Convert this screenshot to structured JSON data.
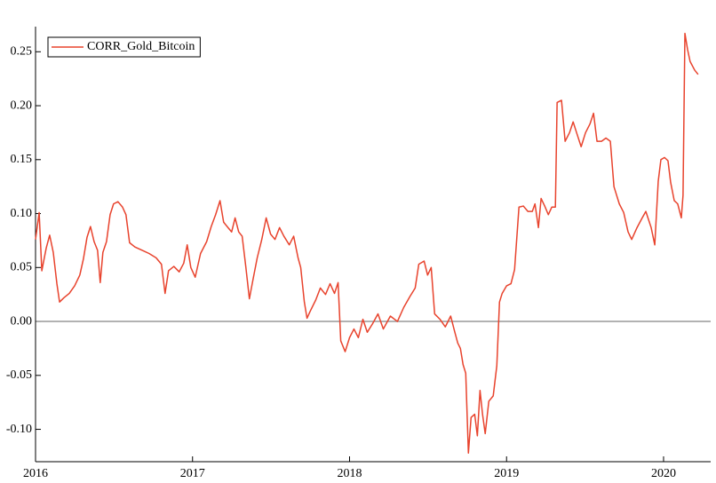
{
  "chart_data": {
    "type": "line",
    "x": [
      2016.0,
      2016.023,
      2016.04,
      2016.068,
      2016.09,
      2016.113,
      2016.136,
      2016.153,
      2016.181,
      2016.215,
      2016.249,
      2016.282,
      2016.305,
      2016.328,
      2016.35,
      2016.373,
      2016.395,
      2016.412,
      2016.429,
      2016.452,
      2016.475,
      2016.497,
      2016.525,
      2016.554,
      2016.576,
      2016.599,
      2016.633,
      2016.678,
      2016.723,
      2016.768,
      2016.802,
      2016.825,
      2016.847,
      2016.881,
      2016.915,
      2016.944,
      2016.966,
      2016.989,
      2017.017,
      2017.051,
      2017.09,
      2017.119,
      2017.147,
      2017.175,
      2017.198,
      2017.226,
      2017.249,
      2017.271,
      2017.294,
      2017.316,
      2017.339,
      2017.362,
      2017.384,
      2017.412,
      2017.441,
      2017.469,
      2017.497,
      2017.525,
      2017.554,
      2017.582,
      2017.616,
      2017.644,
      2017.672,
      2017.689,
      2017.712,
      2017.729,
      2017.751,
      2017.785,
      2017.814,
      2017.847,
      2017.876,
      2017.904,
      2017.927,
      2017.944,
      2017.972,
      2018.0,
      2018.028,
      2018.056,
      2018.085,
      2018.113,
      2018.147,
      2018.181,
      2018.215,
      2018.26,
      2018.305,
      2018.345,
      2018.384,
      2018.418,
      2018.441,
      2018.475,
      2018.497,
      2018.52,
      2018.542,
      2018.576,
      2018.61,
      2018.644,
      2018.667,
      2018.689,
      2018.706,
      2018.723,
      2018.74,
      2018.757,
      2018.774,
      2018.797,
      2018.814,
      2018.831,
      2018.847,
      2018.864,
      2018.887,
      2018.915,
      2018.938,
      2018.955,
      2018.972,
      2019.0,
      2019.028,
      2019.051,
      2019.079,
      2019.107,
      2019.136,
      2019.164,
      2019.181,
      2019.203,
      2019.22,
      2019.243,
      2019.266,
      2019.288,
      2019.311,
      2019.322,
      2019.35,
      2019.373,
      2019.401,
      2019.424,
      2019.446,
      2019.475,
      2019.503,
      2019.531,
      2019.554,
      2019.576,
      2019.605,
      2019.633,
      2019.661,
      2019.684,
      2019.718,
      2019.746,
      2019.774,
      2019.797,
      2019.831,
      2019.864,
      2019.887,
      2019.921,
      2019.944,
      2019.966,
      2019.983,
      2020.006,
      2020.028,
      2020.045,
      2020.068,
      2020.09,
      2020.113,
      2020.124,
      2020.136,
      2020.153,
      2020.169,
      2020.198,
      2020.22
    ],
    "series": [
      {
        "name": "CORR_Gold_Bitcoin",
        "color": "#e8432d",
        "values": [
          0.076,
          0.101,
          0.047,
          0.068,
          0.08,
          0.064,
          0.035,
          0.018,
          0.022,
          0.026,
          0.033,
          0.043,
          0.058,
          0.078,
          0.088,
          0.074,
          0.066,
          0.036,
          0.064,
          0.074,
          0.099,
          0.109,
          0.111,
          0.106,
          0.099,
          0.073,
          0.069,
          0.066,
          0.063,
          0.059,
          0.053,
          0.026,
          0.047,
          0.051,
          0.046,
          0.054,
          0.071,
          0.05,
          0.041,
          0.063,
          0.074,
          0.088,
          0.099,
          0.112,
          0.092,
          0.087,
          0.083,
          0.096,
          0.083,
          0.079,
          0.051,
          0.021,
          0.038,
          0.059,
          0.076,
          0.096,
          0.081,
          0.076,
          0.087,
          0.079,
          0.071,
          0.079,
          0.059,
          0.05,
          0.018,
          0.003,
          0.01,
          0.02,
          0.031,
          0.025,
          0.035,
          0.026,
          0.036,
          -0.018,
          -0.028,
          -0.015,
          -0.007,
          -0.015,
          0.002,
          -0.01,
          -0.002,
          0.007,
          -0.007,
          0.005,
          0.0,
          0.013,
          0.023,
          0.031,
          0.053,
          0.056,
          0.043,
          0.05,
          0.007,
          0.002,
          -0.005,
          0.005,
          -0.008,
          -0.02,
          -0.025,
          -0.04,
          -0.048,
          -0.122,
          -0.089,
          -0.086,
          -0.106,
          -0.064,
          -0.086,
          -0.104,
          -0.074,
          -0.069,
          -0.041,
          0.018,
          0.026,
          0.033,
          0.035,
          0.048,
          0.106,
          0.107,
          0.102,
          0.102,
          0.109,
          0.087,
          0.114,
          0.107,
          0.099,
          0.106,
          0.106,
          0.203,
          0.205,
          0.167,
          0.175,
          0.185,
          0.175,
          0.162,
          0.175,
          0.183,
          0.193,
          0.167,
          0.167,
          0.17,
          0.167,
          0.125,
          0.109,
          0.101,
          0.083,
          0.076,
          0.087,
          0.096,
          0.102,
          0.087,
          0.071,
          0.13,
          0.15,
          0.152,
          0.149,
          0.129,
          0.112,
          0.109,
          0.096,
          0.117,
          0.267,
          0.252,
          0.241,
          0.233,
          0.229
        ]
      }
    ],
    "xlim": [
      2016,
      2020.3
    ],
    "xticks": [
      2016,
      2017,
      2018,
      2019,
      2020
    ],
    "ylim": [
      -0.13,
      0.27
    ],
    "yticks": [
      {
        "value": -0.1,
        "label": "-0.10"
      },
      -0.05,
      {
        "value": 0,
        "label": "0.00"
      },
      0.05,
      {
        "value": 0.1,
        "label": "0.10"
      },
      0.15,
      {
        "value": 0.2,
        "label": "0.20"
      },
      0.25
    ],
    "zero_line": true,
    "zero_line_color": "#999999",
    "legend": "top-left"
  }
}
